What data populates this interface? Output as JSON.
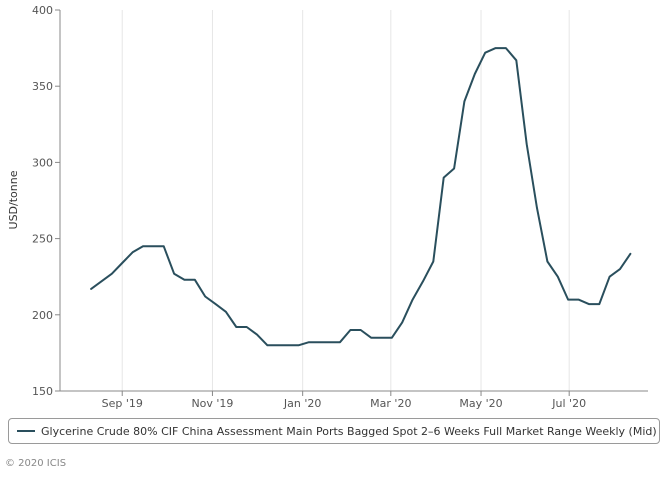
{
  "chart_data": {
    "type": "line",
    "ylabel": "USD/tonne",
    "ylim": [
      150,
      400
    ],
    "y_ticks": [
      150,
      200,
      250,
      300,
      350,
      400
    ],
    "x_ticks": [
      {
        "label": "Sep '19",
        "x": 3
      },
      {
        "label": "Nov '19",
        "x": 11.7
      },
      {
        "label": "Jan '20",
        "x": 20.4
      },
      {
        "label": "Mar '20",
        "x": 28.9
      },
      {
        "label": "May '20",
        "x": 37.6
      },
      {
        "label": "Jul '20",
        "x": 46.1
      }
    ],
    "x_range": [
      -3.0,
      53.7
    ],
    "grid": "vertical at x ticks",
    "series": [
      {
        "name": "Glycerine Crude 80% CIF China Assessment Main Ports Bagged Spot 2-6 Weeks Full Market Range Weekly (Mid)",
        "color": "#2a4f5d",
        "values": [
          217,
          222,
          227,
          234,
          241,
          245,
          245,
          245,
          227,
          223,
          223,
          212,
          207,
          202,
          192,
          192,
          187,
          180,
          180,
          180,
          180,
          182,
          182,
          182,
          182,
          190,
          190,
          185,
          185,
          185,
          195,
          210,
          222,
          235,
          290,
          296,
          340,
          358,
          372,
          375,
          375,
          367,
          312,
          270,
          235,
          225,
          210,
          210,
          207,
          207,
          225,
          230,
          240
        ]
      }
    ]
  },
  "legend": {
    "label": "Glycerine Crude 80% CIF China Assessment Main Ports Bagged Spot 2–6 Weeks Full Market Range Weekly (Mid)"
  },
  "footer": {
    "copyright": "© 2020 ICIS"
  }
}
